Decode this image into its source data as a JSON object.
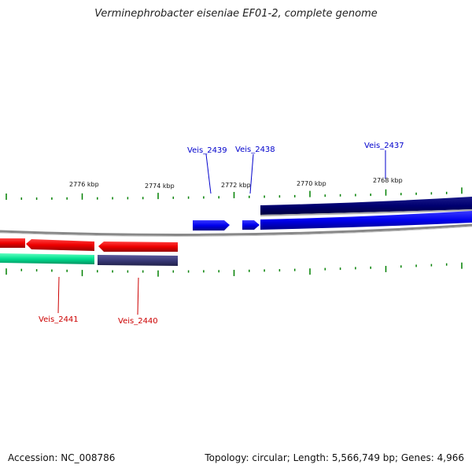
{
  "title": "Verminephrobacter eiseniae EF01-2, complete genome",
  "footer": {
    "accession": "Accession: NC_008786",
    "summary": "Topology: circular; Length: 5,566,749 bp; Genes: 4,966"
  },
  "scale": {
    "tick_labels": [
      "2776 kbp",
      "2774 kbp",
      "2772 kbp",
      "2770 kbp",
      "2768 kbp"
    ]
  },
  "genes": {
    "veis_2439": "Veis_2439",
    "veis_2438": "Veis_2438",
    "veis_2437": "Veis_2437",
    "veis_2441": "Veis_2441",
    "veis_2440": "Veis_2440"
  },
  "colors": {
    "forward_cds": "#0000ee",
    "forward_dark": "#000080",
    "reverse_cds": "#ee0000",
    "reverse_dark": "#40407a",
    "rna_green": "#00e090",
    "tick_green": "#008000",
    "backbone": "#888888"
  }
}
